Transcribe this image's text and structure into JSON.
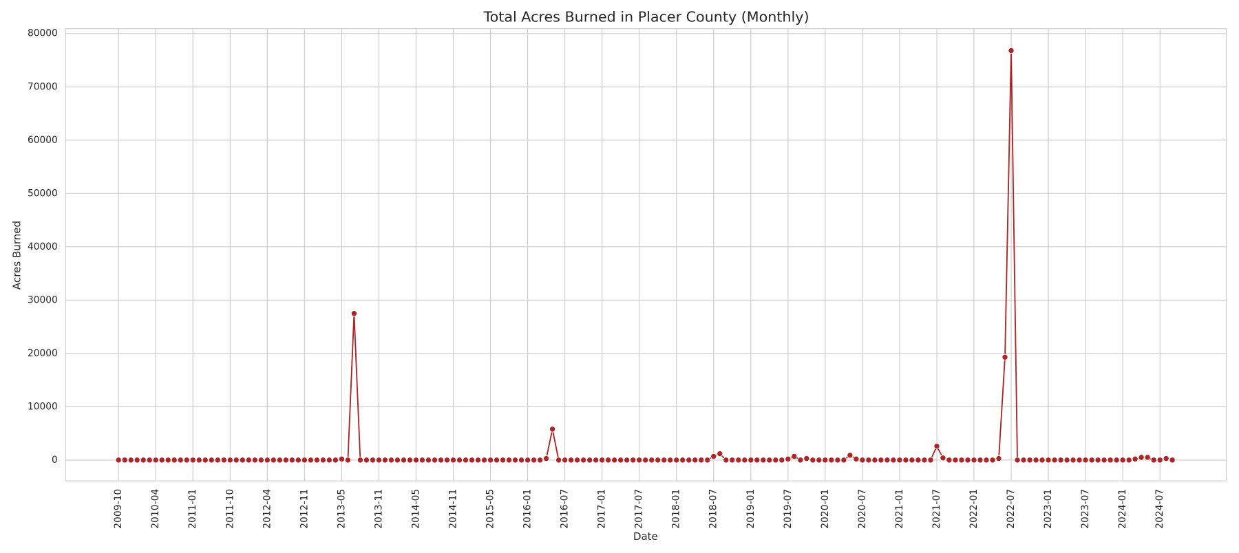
{
  "chart_data": {
    "type": "line",
    "title": "Total Acres Burned in Placer County (Monthly)",
    "xlabel": "Date",
    "ylabel": "Acres Burned",
    "categories": [
      "2009-10",
      null,
      null,
      null,
      null,
      null,
      "2010-04",
      null,
      null,
      null,
      null,
      null,
      "2011-01",
      null,
      null,
      null,
      null,
      null,
      "2011-10",
      null,
      null,
      null,
      null,
      null,
      "2012-04",
      null,
      null,
      null,
      null,
      null,
      "2012-11",
      null,
      null,
      null,
      null,
      null,
      "2013-05",
      null,
      null,
      null,
      null,
      null,
      "2013-11",
      null,
      null,
      null,
      null,
      null,
      "2014-05",
      null,
      null,
      null,
      null,
      null,
      "2014-11",
      null,
      null,
      null,
      null,
      null,
      "2015-05",
      null,
      null,
      null,
      null,
      null,
      "2016-01",
      null,
      null,
      null,
      null,
      null,
      "2016-07",
      null,
      null,
      null,
      null,
      null,
      "2017-01",
      null,
      null,
      null,
      null,
      null,
      "2017-07",
      null,
      null,
      null,
      null,
      null,
      "2018-01",
      null,
      null,
      null,
      null,
      null,
      "2018-07",
      null,
      null,
      null,
      null,
      null,
      "2019-01",
      null,
      null,
      null,
      null,
      null,
      "2019-07",
      null,
      null,
      null,
      null,
      null,
      "2020-01",
      null,
      null,
      null,
      null,
      null,
      "2020-07",
      null,
      null,
      null,
      null,
      null,
      "2021-01",
      null,
      null,
      null,
      null,
      null,
      "2021-07",
      null,
      null,
      null,
      null,
      null,
      "2022-01",
      null,
      null,
      null,
      null,
      null,
      "2022-07",
      null,
      null,
      null,
      null,
      null,
      "2023-01",
      null,
      null,
      null,
      null,
      null,
      "2023-07",
      null,
      null,
      null,
      null,
      null,
      "2024-01",
      null,
      null,
      null,
      null,
      null,
      "2024-07",
      null,
      null
    ],
    "values": [
      0,
      0,
      0,
      0,
      0,
      0,
      0,
      0,
      0,
      0,
      0,
      0,
      0,
      0,
      0,
      0,
      0,
      0,
      0,
      0,
      0,
      0,
      0,
      0,
      0,
      0,
      0,
      0,
      0,
      0,
      0,
      0,
      0,
      0,
      0,
      0,
      200,
      0,
      27500,
      0,
      0,
      0,
      0,
      0,
      0,
      0,
      0,
      0,
      0,
      0,
      0,
      0,
      0,
      0,
      0,
      0,
      0,
      0,
      0,
      0,
      0,
      0,
      0,
      0,
      0,
      0,
      0,
      0,
      0,
      300,
      5800,
      0,
      0,
      0,
      0,
      0,
      0,
      0,
      0,
      0,
      0,
      0,
      0,
      0,
      0,
      0,
      0,
      0,
      0,
      0,
      0,
      0,
      0,
      0,
      0,
      0,
      700,
      1200,
      0,
      0,
      0,
      0,
      0,
      0,
      0,
      0,
      0,
      0,
      200,
      700,
      0,
      300,
      0,
      0,
      0,
      0,
      0,
      0,
      900,
      200,
      0,
      0,
      0,
      0,
      0,
      0,
      0,
      0,
      0,
      0,
      0,
      0,
      2600,
      400,
      0,
      0,
      0,
      0,
      0,
      0,
      0,
      0,
      300,
      19300,
      76800,
      0,
      0,
      0,
      0,
      0,
      0,
      0,
      0,
      0,
      0,
      0,
      0,
      0,
      0,
      0,
      0,
      0,
      0,
      0,
      200,
      500,
      500,
      0,
      0,
      300,
      0
    ],
    "color": "#b22222",
    "ylim": [
      -3900,
      80900
    ],
    "yticks": [
      0,
      10000,
      20000,
      30000,
      40000,
      50000,
      60000,
      70000,
      80000
    ],
    "grid": true
  }
}
